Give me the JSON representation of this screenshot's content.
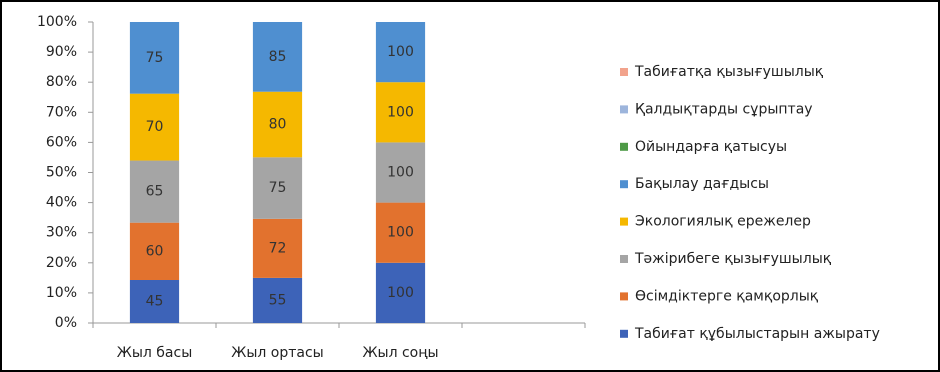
{
  "chart_data": {
    "type": "bar",
    "stacking": "percent",
    "grid": false,
    "legend": "right",
    "categories": [
      "Жыл басы",
      "Жыл ортасы",
      "Жыл соңы",
      null
    ],
    "series": [
      {
        "name": "Табиғат құбылыстарын ажырату",
        "color": "#3d63b8",
        "values": [
          45,
          55,
          100,
          null
        ]
      },
      {
        "name": "Өсімдіктерге қамқорлық",
        "color": "#e2722e",
        "values": [
          60,
          72,
          100,
          null
        ]
      },
      {
        "name": "Тәжірибеге қызығушылық",
        "color": "#a5a5a5",
        "values": [
          65,
          75,
          100,
          null
        ]
      },
      {
        "name": "Экологиялық ережелер",
        "color": "#f5b800",
        "values": [
          70,
          80,
          100,
          null
        ]
      },
      {
        "name": "Бақылау дағдысы",
        "color": "#4f8fd0",
        "values": [
          75,
          85,
          100,
          null
        ]
      },
      {
        "name": "Ойындарға қатысуы",
        "color": "#4e9a47",
        "values": [
          0,
          0,
          0,
          null
        ]
      },
      {
        "name": "Қалдықтарды сұрыптау",
        "color": "#9db5dc",
        "values": [
          0,
          0,
          0,
          null
        ]
      },
      {
        "name": "Табиғатқа қызығушылық",
        "color": "#f2a38c",
        "values": [
          0,
          0,
          0,
          null
        ]
      }
    ],
    "ylim": [
      0,
      100
    ],
    "yticks": [
      {
        "value": 0,
        "label": "0%"
      },
      {
        "value": 10,
        "label": "10%"
      },
      {
        "value": 20,
        "label": "20%"
      },
      {
        "value": 30,
        "label": "30%"
      },
      {
        "value": 40,
        "label": "40%"
      },
      {
        "value": 50,
        "label": "50%"
      },
      {
        "value": 60,
        "label": "60%"
      },
      {
        "value": 70,
        "label": "70%"
      },
      {
        "value": 80,
        "label": "80%"
      },
      {
        "value": 90,
        "label": "90%"
      },
      {
        "value": 100,
        "label": "100%"
      }
    ]
  }
}
